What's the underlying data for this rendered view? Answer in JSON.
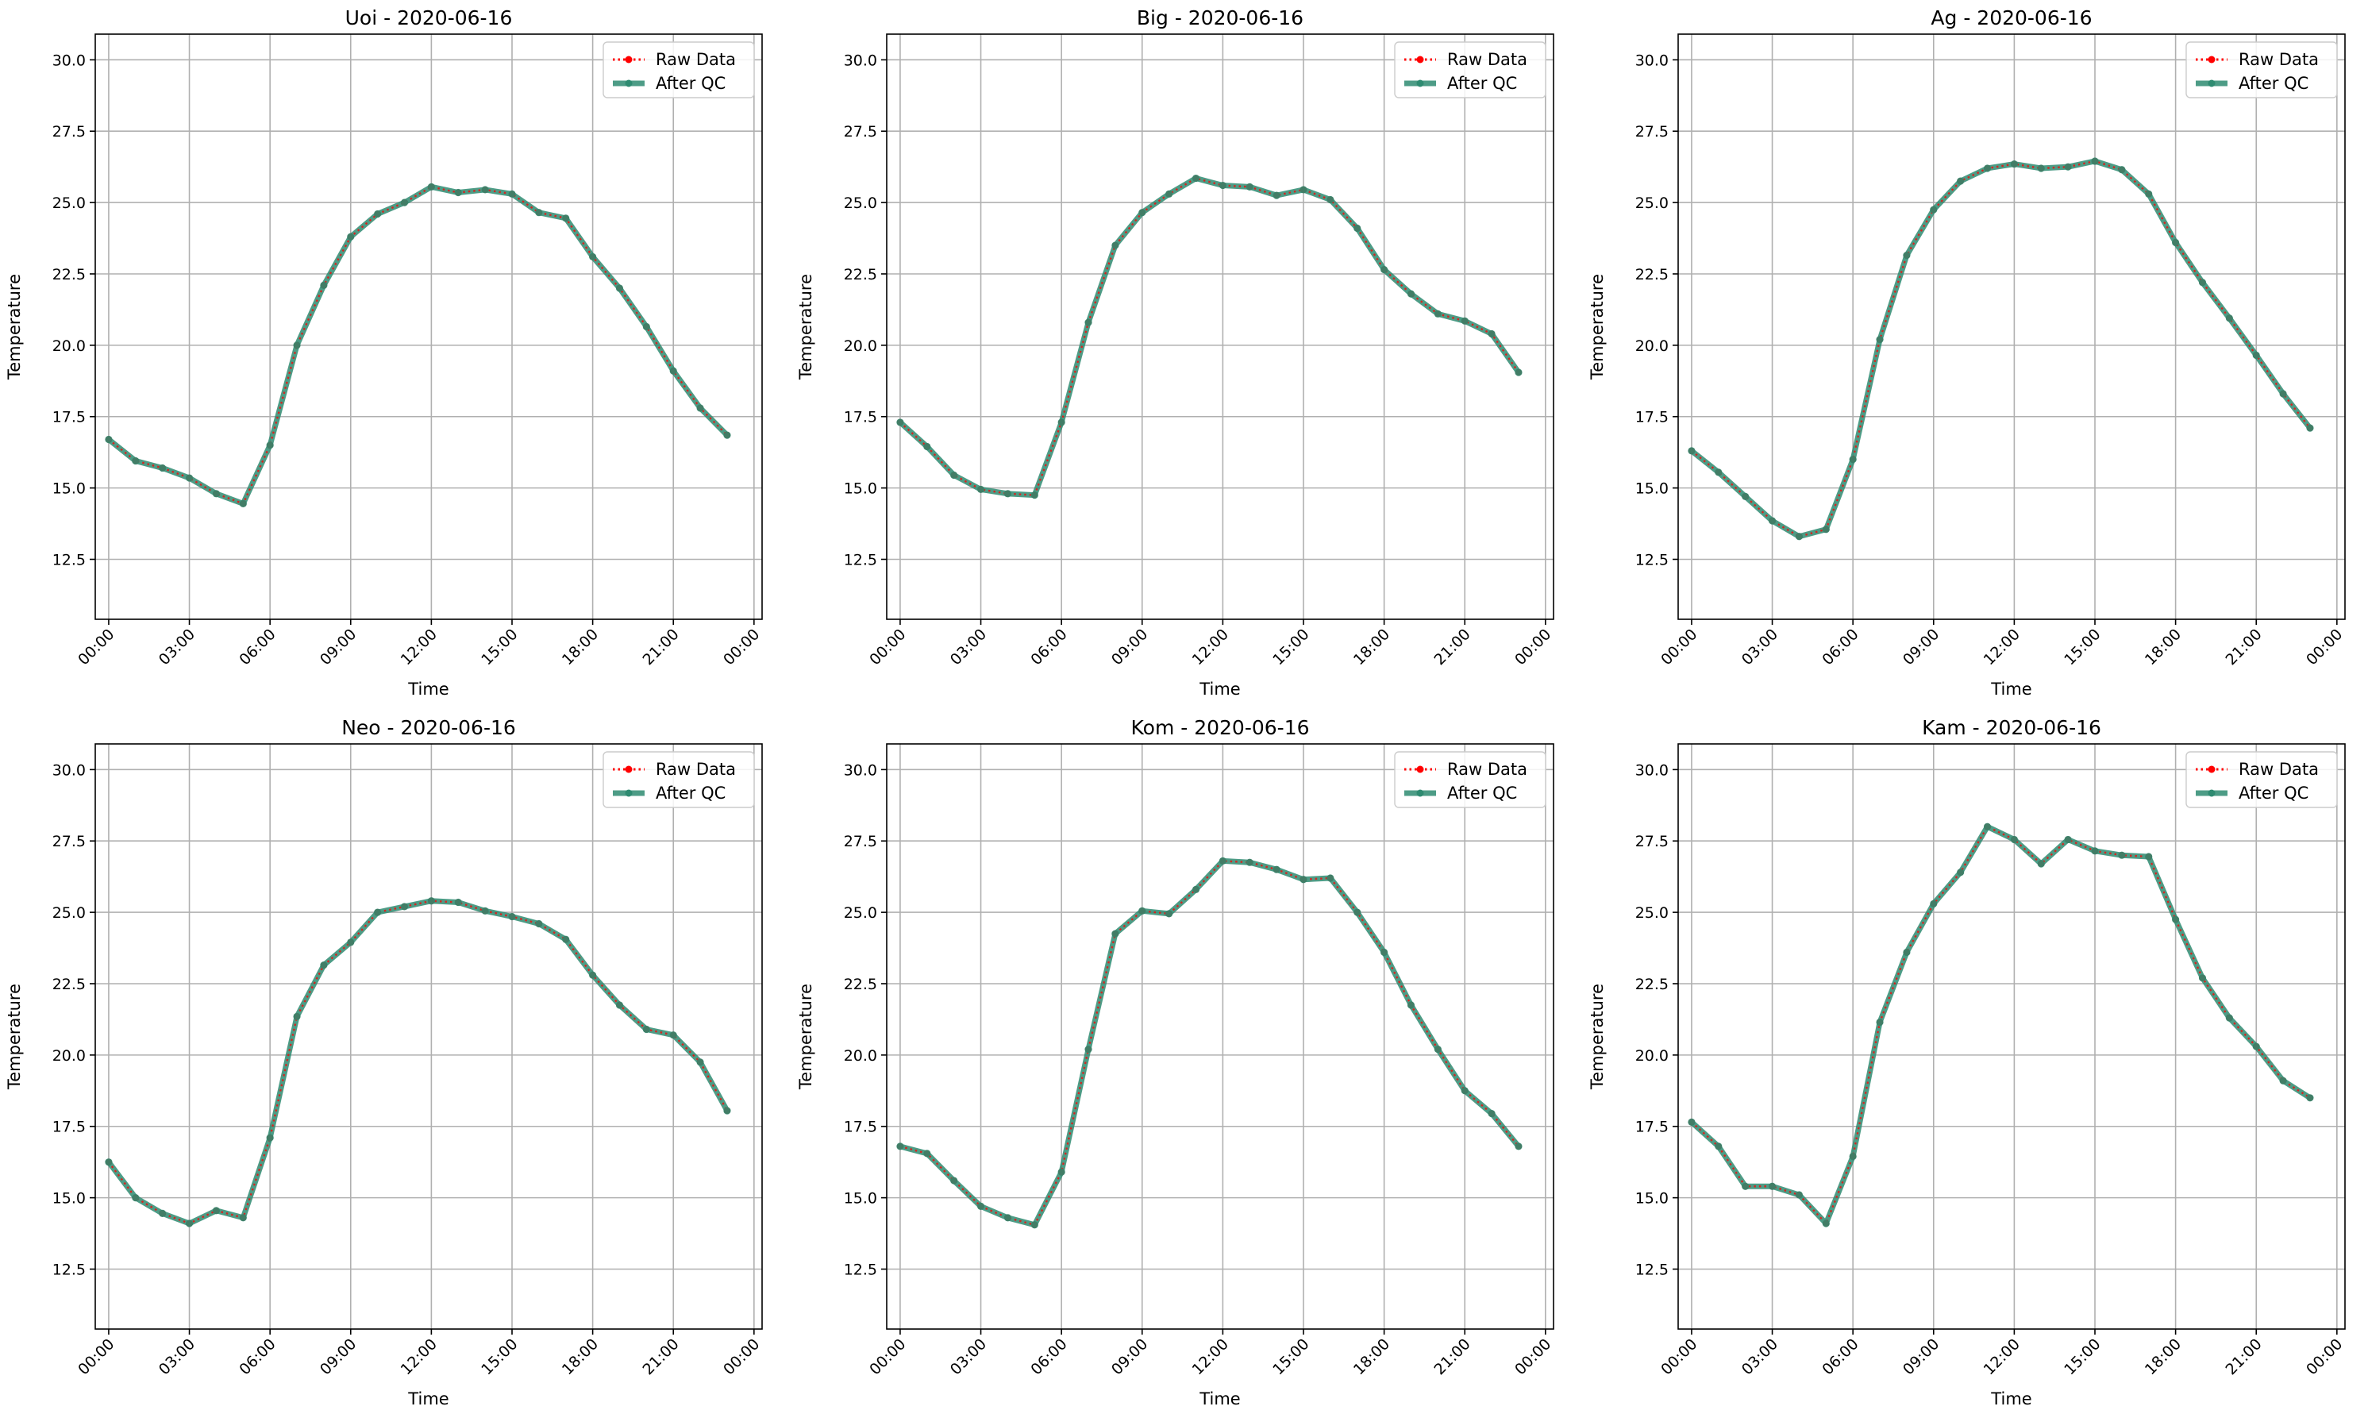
{
  "figure": {
    "background": "#ffffff"
  },
  "colors": {
    "raw": "#ff0000",
    "qc": "#2e8b71",
    "grid": "#b0b0b0",
    "axes": "#000000"
  },
  "chart_data": [
    {
      "type": "line",
      "title": "Uoi - 2020-06-16",
      "xlabel": "Time",
      "ylabel": "Temperature",
      "x": [
        "00:00",
        "01:00",
        "02:00",
        "03:00",
        "04:00",
        "05:00",
        "06:00",
        "07:00",
        "08:00",
        "09:00",
        "10:00",
        "11:00",
        "12:00",
        "13:00",
        "14:00",
        "15:00",
        "16:00",
        "17:00",
        "18:00",
        "19:00",
        "20:00",
        "21:00",
        "22:00",
        "23:00"
      ],
      "xticks": [
        "00:00",
        "03:00",
        "06:00",
        "09:00",
        "12:00",
        "15:00",
        "18:00",
        "21:00",
        "00:00"
      ],
      "yticks": [
        "12.5",
        "15.0",
        "17.5",
        "20.0",
        "22.5",
        "25.0",
        "27.5",
        "30.0"
      ],
      "ylim": [
        10.4,
        30.9
      ],
      "grid": true,
      "legend_position": "top-right",
      "series": [
        {
          "name": "Raw Data",
          "values": [
            16.7,
            15.95,
            15.7,
            15.35,
            14.8,
            14.45,
            16.5,
            20.0,
            22.1,
            23.8,
            24.6,
            25.0,
            25.55,
            25.35,
            25.45,
            25.3,
            24.65,
            24.45,
            23.1,
            22.0,
            20.65,
            19.1,
            17.8,
            16.85
          ]
        },
        {
          "name": "After QC",
          "values": [
            16.7,
            15.95,
            15.7,
            15.35,
            14.8,
            14.45,
            16.5,
            20.0,
            22.1,
            23.8,
            24.6,
            25.0,
            25.55,
            25.35,
            25.45,
            25.3,
            24.65,
            24.45,
            23.1,
            22.0,
            20.65,
            19.1,
            17.8,
            16.85
          ]
        }
      ]
    },
    {
      "type": "line",
      "title": "Big - 2020-06-16",
      "xlabel": "Time",
      "ylabel": "Temperature",
      "x": [
        "00:00",
        "01:00",
        "02:00",
        "03:00",
        "04:00",
        "05:00",
        "06:00",
        "07:00",
        "08:00",
        "09:00",
        "10:00",
        "11:00",
        "12:00",
        "13:00",
        "14:00",
        "15:00",
        "16:00",
        "17:00",
        "18:00",
        "19:00",
        "20:00",
        "21:00",
        "22:00",
        "23:00"
      ],
      "xticks": [
        "00:00",
        "03:00",
        "06:00",
        "09:00",
        "12:00",
        "15:00",
        "18:00",
        "21:00",
        "00:00"
      ],
      "yticks": [
        "12.5",
        "15.0",
        "17.5",
        "20.0",
        "22.5",
        "25.0",
        "27.5",
        "30.0"
      ],
      "ylim": [
        10.4,
        30.9
      ],
      "grid": true,
      "legend_position": "top-right",
      "series": [
        {
          "name": "Raw Data",
          "values": [
            17.3,
            16.45,
            15.45,
            14.95,
            14.8,
            14.75,
            17.3,
            20.8,
            23.5,
            24.65,
            25.3,
            25.85,
            25.6,
            25.55,
            25.25,
            25.45,
            25.1,
            24.1,
            22.65,
            21.8,
            21.1,
            20.85,
            20.4,
            19.05
          ]
        },
        {
          "name": "After QC",
          "values": [
            17.3,
            16.45,
            15.45,
            14.95,
            14.8,
            14.75,
            17.3,
            20.8,
            23.5,
            24.65,
            25.3,
            25.85,
            25.6,
            25.55,
            25.25,
            25.45,
            25.1,
            24.1,
            22.65,
            21.8,
            21.1,
            20.85,
            20.4,
            19.05
          ]
        }
      ]
    },
    {
      "type": "line",
      "title": "Ag - 2020-06-16",
      "xlabel": "Time",
      "ylabel": "Temperature",
      "x": [
        "00:00",
        "01:00",
        "02:00",
        "03:00",
        "04:00",
        "05:00",
        "06:00",
        "07:00",
        "08:00",
        "09:00",
        "10:00",
        "11:00",
        "12:00",
        "13:00",
        "14:00",
        "15:00",
        "16:00",
        "17:00",
        "18:00",
        "19:00",
        "20:00",
        "21:00",
        "22:00",
        "23:00"
      ],
      "xticks": [
        "00:00",
        "03:00",
        "06:00",
        "09:00",
        "12:00",
        "15:00",
        "18:00",
        "21:00",
        "00:00"
      ],
      "yticks": [
        "12.5",
        "15.0",
        "17.5",
        "20.0",
        "22.5",
        "25.0",
        "27.5",
        "30.0"
      ],
      "ylim": [
        10.4,
        30.9
      ],
      "grid": true,
      "legend_position": "top-right",
      "series": [
        {
          "name": "Raw Data",
          "values": [
            16.3,
            15.55,
            14.7,
            13.85,
            13.3,
            13.55,
            16.0,
            20.2,
            23.15,
            24.75,
            25.75,
            26.2,
            26.35,
            26.2,
            26.25,
            26.45,
            26.15,
            25.3,
            23.6,
            22.2,
            20.95,
            19.65,
            18.3,
            17.1
          ]
        },
        {
          "name": "After QC",
          "values": [
            16.3,
            15.55,
            14.7,
            13.85,
            13.3,
            13.55,
            16.0,
            20.2,
            23.15,
            24.75,
            25.75,
            26.2,
            26.35,
            26.2,
            26.25,
            26.45,
            26.15,
            25.3,
            23.6,
            22.2,
            20.95,
            19.65,
            18.3,
            17.1
          ]
        }
      ]
    },
    {
      "type": "line",
      "title": "Neo - 2020-06-16",
      "xlabel": "Time",
      "ylabel": "Temperature",
      "x": [
        "00:00",
        "01:00",
        "02:00",
        "03:00",
        "04:00",
        "05:00",
        "06:00",
        "07:00",
        "08:00",
        "09:00",
        "10:00",
        "11:00",
        "12:00",
        "13:00",
        "14:00",
        "15:00",
        "16:00",
        "17:00",
        "18:00",
        "19:00",
        "20:00",
        "21:00",
        "22:00",
        "23:00"
      ],
      "xticks": [
        "00:00",
        "03:00",
        "06:00",
        "09:00",
        "12:00",
        "15:00",
        "18:00",
        "21:00",
        "00:00"
      ],
      "yticks": [
        "12.5",
        "15.0",
        "17.5",
        "20.0",
        "22.5",
        "25.0",
        "27.5",
        "30.0"
      ],
      "ylim": [
        10.4,
        30.9
      ],
      "grid": true,
      "legend_position": "top-right",
      "series": [
        {
          "name": "Raw Data",
          "values": [
            16.25,
            15.0,
            14.45,
            14.1,
            14.55,
            14.3,
            17.1,
            21.35,
            23.15,
            23.95,
            25.0,
            25.2,
            25.4,
            25.35,
            25.05,
            24.85,
            24.6,
            24.05,
            22.8,
            21.75,
            20.9,
            20.7,
            19.75,
            18.05
          ]
        },
        {
          "name": "After QC",
          "values": [
            16.25,
            15.0,
            14.45,
            14.1,
            14.55,
            14.3,
            17.1,
            21.35,
            23.15,
            23.95,
            25.0,
            25.2,
            25.4,
            25.35,
            25.05,
            24.85,
            24.6,
            24.05,
            22.8,
            21.75,
            20.9,
            20.7,
            19.75,
            18.05
          ]
        }
      ]
    },
    {
      "type": "line",
      "title": "Kom - 2020-06-16",
      "xlabel": "Time",
      "ylabel": "Temperature",
      "x": [
        "00:00",
        "01:00",
        "02:00",
        "03:00",
        "04:00",
        "05:00",
        "06:00",
        "07:00",
        "08:00",
        "09:00",
        "10:00",
        "11:00",
        "12:00",
        "13:00",
        "14:00",
        "15:00",
        "16:00",
        "17:00",
        "18:00",
        "19:00",
        "20:00",
        "21:00",
        "22:00",
        "23:00"
      ],
      "xticks": [
        "00:00",
        "03:00",
        "06:00",
        "09:00",
        "12:00",
        "15:00",
        "18:00",
        "21:00",
        "00:00"
      ],
      "yticks": [
        "12.5",
        "15.0",
        "17.5",
        "20.0",
        "22.5",
        "25.0",
        "27.5",
        "30.0"
      ],
      "ylim": [
        10.4,
        30.9
      ],
      "grid": true,
      "legend_position": "top-right",
      "series": [
        {
          "name": "Raw Data",
          "values": [
            16.8,
            16.55,
            15.6,
            14.7,
            14.3,
            14.05,
            15.9,
            20.2,
            24.25,
            25.05,
            24.95,
            25.8,
            26.8,
            26.75,
            26.5,
            26.15,
            26.2,
            25.0,
            23.6,
            21.75,
            20.2,
            18.75,
            17.95,
            16.8
          ]
        },
        {
          "name": "After QC",
          "values": [
            16.8,
            16.55,
            15.6,
            14.7,
            14.3,
            14.05,
            15.9,
            20.2,
            24.25,
            25.05,
            24.95,
            25.8,
            26.8,
            26.75,
            26.5,
            26.15,
            26.2,
            25.0,
            23.6,
            21.75,
            20.2,
            18.75,
            17.95,
            16.8
          ]
        }
      ]
    },
    {
      "type": "line",
      "title": "Kam - 2020-06-16",
      "xlabel": "Time",
      "ylabel": "Temperature",
      "x": [
        "00:00",
        "01:00",
        "02:00",
        "03:00",
        "04:00",
        "05:00",
        "06:00",
        "07:00",
        "08:00",
        "09:00",
        "10:00",
        "11:00",
        "12:00",
        "13:00",
        "14:00",
        "15:00",
        "16:00",
        "17:00",
        "18:00",
        "19:00",
        "20:00",
        "21:00",
        "22:00",
        "23:00"
      ],
      "xticks": [
        "00:00",
        "03:00",
        "06:00",
        "09:00",
        "12:00",
        "15:00",
        "18:00",
        "21:00",
        "00:00"
      ],
      "yticks": [
        "12.5",
        "15.0",
        "17.5",
        "20.0",
        "22.5",
        "25.0",
        "27.5",
        "30.0"
      ],
      "ylim": [
        10.4,
        30.9
      ],
      "grid": true,
      "legend_position": "top-right",
      "series": [
        {
          "name": "Raw Data",
          "values": [
            17.65,
            16.8,
            15.4,
            15.4,
            15.1,
            14.1,
            16.45,
            21.15,
            23.6,
            25.3,
            26.4,
            28.0,
            27.55,
            26.7,
            27.55,
            27.15,
            27.0,
            26.95,
            24.75,
            22.7,
            21.3,
            20.3,
            19.1,
            18.5
          ]
        },
        {
          "name": "After QC",
          "values": [
            17.65,
            16.8,
            15.4,
            15.4,
            15.1,
            14.1,
            16.45,
            21.15,
            23.6,
            25.3,
            26.4,
            28.0,
            27.55,
            26.7,
            27.55,
            27.15,
            27.0,
            26.95,
            24.75,
            22.7,
            21.3,
            20.3,
            19.1,
            18.5
          ]
        }
      ]
    }
  ]
}
